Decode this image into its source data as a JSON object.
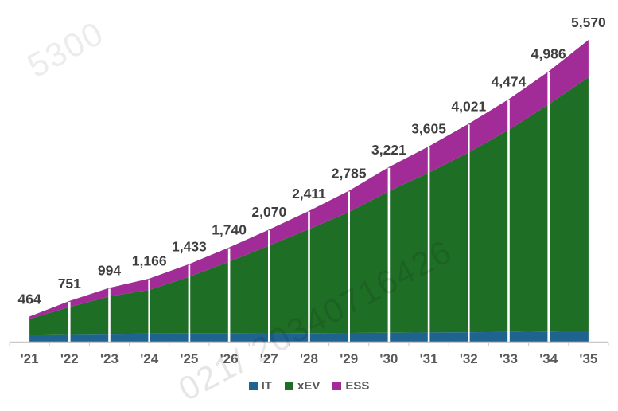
{
  "watermark": {
    "top_left_text": "5300",
    "diagonal_text": "021/ 20340716426"
  },
  "legend": {
    "items": [
      {
        "label": "IT",
        "color": "#1f6390"
      },
      {
        "label": "xEV",
        "color": "#1f6e26"
      },
      {
        "label": "ESS",
        "color": "#a12c98"
      }
    ]
  },
  "chart_data": {
    "type": "area",
    "stacked": true,
    "title": "",
    "categories": [
      "'21",
      "'22",
      "'23",
      "'24",
      "'25",
      "'26",
      "'27",
      "'28",
      "'29",
      "'30",
      "'31",
      "'32",
      "'33",
      "'34",
      "'35"
    ],
    "series": [
      {
        "name": "IT",
        "color": "#1f6390",
        "values": [
          130,
          140,
          145,
          148,
          150,
          152,
          155,
          158,
          162,
          166,
          170,
          175,
          180,
          186,
          200
        ]
      },
      {
        "name": "xEV",
        "color": "#1f6e26",
        "values": [
          289,
          501,
          689,
          808,
          1048,
          1325,
          1620,
          1920,
          2230,
          2610,
          2950,
          3320,
          3730,
          4190,
          4680
        ]
      },
      {
        "name": "ESS",
        "color": "#a12c98",
        "values": [
          45,
          110,
          160,
          210,
          235,
          263,
          295,
          333,
          393,
          445,
          485,
          526,
          564,
          610,
          690
        ]
      }
    ],
    "totals": [
      464,
      751,
      994,
      1166,
      1433,
      1740,
      2070,
      2411,
      2785,
      3221,
      3605,
      4021,
      4474,
      4986,
      5570
    ],
    "total_labels": [
      "464",
      "751",
      "994",
      "1,166",
      "1,433",
      "1,740",
      "2,070",
      "2,411",
      "2,785",
      "3,221",
      "3,605",
      "4,021",
      "4,474",
      "4,986",
      "5,570"
    ],
    "ylim": [
      0,
      5570
    ],
    "gridlines": false,
    "legend_position": "bottom",
    "separators": "white vertical line at each year point",
    "value_label_color": "#3f3f3f",
    "axis_label_color": "#595959",
    "axis_line_color": "#c9c9c9",
    "separator_color": "#ffffff"
  }
}
